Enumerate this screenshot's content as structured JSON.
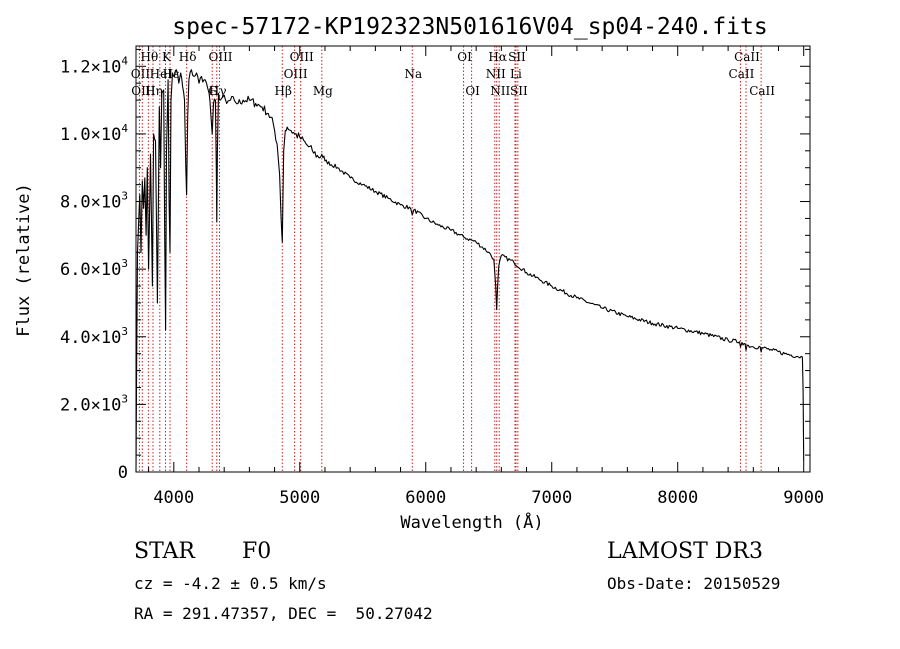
{
  "chart_data": {
    "type": "line",
    "title": "spec-57172-KP192323N501616V04_sp04-240.fits",
    "xlabel": "Wavelength (Å)",
    "ylabel": "Flux (relative)",
    "xlim": [
      3700,
      9050
    ],
    "ylim": [
      0,
      12600
    ],
    "x_ticks": [
      4000,
      5000,
      6000,
      7000,
      8000,
      9000
    ],
    "x_tick_labels": [
      "4000",
      "5000",
      "6000",
      "7000",
      "8000",
      "9000"
    ],
    "y_ticks": [
      0,
      2000,
      4000,
      6000,
      8000,
      10000,
      12000
    ],
    "y_tick_labels": [
      {
        "mant": "0",
        "exp": ""
      },
      {
        "mant": "2.0×10",
        "exp": "3"
      },
      {
        "mant": "4.0×10",
        "exp": "3"
      },
      {
        "mant": "6.0×10",
        "exp": "3"
      },
      {
        "mant": "8.0×10",
        "exp": "3"
      },
      {
        "mant": "1.0×10",
        "exp": "4"
      },
      {
        "mant": "1.2×10",
        "exp": "4"
      }
    ],
    "spectral_lines": [
      {
        "label": "Hθ",
        "wavelength": 3798,
        "row": 0
      },
      {
        "label": "OII",
        "wavelength": 3727,
        "row": 1
      },
      {
        "label": "OIII",
        "wavelength": 3750,
        "row": 2
      },
      {
        "label": "K",
        "wavelength": 3934,
        "row": 0
      },
      {
        "label": "Hε",
        "wavelength": 3970,
        "row": 1
      },
      {
        "label": "HeI",
        "wavelength": 3889,
        "row": 1
      },
      {
        "label": "Hη",
        "wavelength": 3835,
        "row": 2
      },
      {
        "label": "Hδ",
        "wavelength": 4102,
        "row": 0
      },
      {
        "label": "G",
        "wavelength": 4305,
        "row": 2
      },
      {
        "label": "Hγ",
        "wavelength": 4341,
        "row": 2
      },
      {
        "label": "OIII",
        "wavelength": 4363,
        "row": 0
      },
      {
        "label": "Hβ",
        "wavelength": 4861,
        "row": 2
      },
      {
        "label": "OIII",
        "wavelength": 4959,
        "row": 1
      },
      {
        "label": "OIII",
        "wavelength": 5007,
        "row": 0
      },
      {
        "label": "Mg",
        "wavelength": 5175,
        "row": 2
      },
      {
        "label": "Na",
        "wavelength": 5893,
        "row": 1
      },
      {
        "label": "OI",
        "wavelength": 6300,
        "row": 0
      },
      {
        "label": "OI",
        "wavelength": 6364,
        "row": 2
      },
      {
        "label": "NII",
        "wavelength": 6548,
        "row": 1
      },
      {
        "label": "Hα",
        "wavelength": 6563,
        "row": 0
      },
      {
        "label": "NII",
        "wavelength": 6583,
        "row": 2
      },
      {
        "label": "SII",
        "wavelength": 6716,
        "row": 0
      },
      {
        "label": "Li",
        "wavelength": 6708,
        "row": 1
      },
      {
        "label": "SII",
        "wavelength": 6731,
        "row": 2
      },
      {
        "label": "CaII",
        "wavelength": 8498,
        "row": 1
      },
      {
        "label": "CaII",
        "wavelength": 8542,
        "row": 0
      },
      {
        "label": "CaII",
        "wavelength": 8662,
        "row": 2
      }
    ],
    "series": [
      {
        "name": "flux",
        "x": [
          3700,
          3705,
          3712,
          3722,
          3730,
          3740,
          3750,
          3760,
          3770,
          3780,
          3790,
          3800,
          3815,
          3830,
          3840,
          3855,
          3870,
          3885,
          3895,
          3905,
          3920,
          3928,
          3935,
          3942,
          3955,
          3963,
          3970,
          3978,
          3990,
          4005,
          4020,
          4040,
          4055,
          4070,
          4085,
          4095,
          4102,
          4110,
          4120,
          4140,
          4160,
          4180,
          4200,
          4220,
          4240,
          4260,
          4280,
          4295,
          4305,
          4315,
          4330,
          4337,
          4341,
          4346,
          4355,
          4370,
          4390,
          4420,
          4450,
          4480,
          4510,
          4550,
          4600,
          4650,
          4700,
          4750,
          4790,
          4820,
          4840,
          4852,
          4858,
          4861,
          4866,
          4872,
          4885,
          4900,
          4930,
          4960,
          5000,
          5050,
          5100,
          5150,
          5175,
          5200,
          5300,
          5400,
          5500,
          5600,
          5700,
          5800,
          5880,
          5893,
          5905,
          6000,
          6100,
          6200,
          6300,
          6400,
          6500,
          6540,
          6555,
          6563,
          6570,
          6580,
          6600,
          6700,
          6800,
          6900,
          7000,
          7200,
          7400,
          7600,
          7800,
          8000,
          8200,
          8400,
          8490,
          8498,
          8510,
          8535,
          8542,
          8550,
          8600,
          8655,
          8662,
          8670,
          8750,
          8850,
          8950,
          8990,
          8995,
          9000
        ],
        "y": [
          0,
          3000,
          6500,
          7500,
          8200,
          6500,
          8600,
          7800,
          8700,
          7000,
          9000,
          6000,
          9400,
          5500,
          10000,
          9800,
          5000,
          10800,
          9000,
          11200,
          11300,
          7000,
          4200,
          9500,
          11600,
          8000,
          6500,
          11000,
          11800,
          11700,
          11900,
          11500,
          11800,
          11400,
          11000,
          9000,
          8200,
          10500,
          11600,
          11900,
          11700,
          11800,
          11500,
          11700,
          11600,
          11500,
          11200,
          10500,
          10000,
          10900,
          11000,
          9000,
          7400,
          9500,
          11200,
          11000,
          11100,
          10900,
          11000,
          11000,
          10900,
          11000,
          11000,
          10900,
          10800,
          10600,
          10300,
          9700,
          8800,
          7500,
          7000,
          6800,
          8000,
          9500,
          10100,
          10200,
          10100,
          10000,
          9900,
          9700,
          9500,
          9300,
          9400,
          9200,
          9000,
          8700,
          8500,
          8300,
          8100,
          7900,
          7800,
          7600,
          7750,
          7500,
          7300,
          7150,
          6950,
          6800,
          6500,
          6300,
          5500,
          4800,
          5500,
          6100,
          6400,
          6200,
          5900,
          5700,
          5500,
          5150,
          4850,
          4600,
          4400,
          4250,
          4100,
          3900,
          3850,
          3700,
          3830,
          3790,
          3600,
          3750,
          3700,
          3700,
          3550,
          3680,
          3600,
          3500,
          3420,
          3400,
          2400,
          300
        ]
      }
    ]
  },
  "info": {
    "object_type": "STAR",
    "subclass": "F0",
    "survey": "LAMOST DR3",
    "redshift": "cz = -4.2 ± 0.5 km/s",
    "obs_date": "Obs-Date: 20150529",
    "coords": "RA = 291.47357, DEC =  50.27042"
  },
  "colors": {
    "spectrum": "#000000",
    "line_marker": "#cc2222",
    "axis": "#000000"
  }
}
